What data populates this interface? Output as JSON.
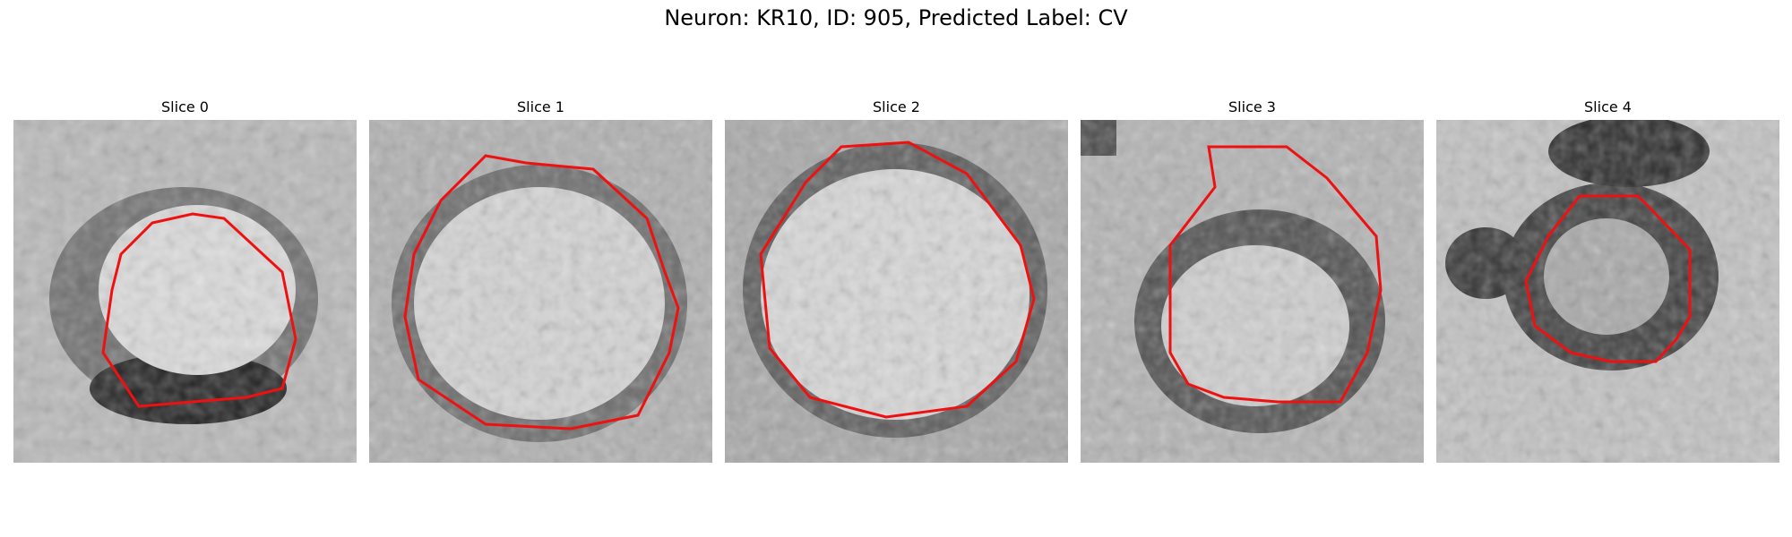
{
  "figure": {
    "title": "Neuron: KR10, ID: 905, Predicted Label: CV"
  },
  "panels": [
    {
      "title": "Slice 0"
    },
    {
      "title": "Slice 1"
    },
    {
      "title": "Slice 2"
    },
    {
      "title": "Slice 3"
    },
    {
      "title": "Slice 4"
    }
  ],
  "colors": {
    "contour": "#ee1111"
  }
}
